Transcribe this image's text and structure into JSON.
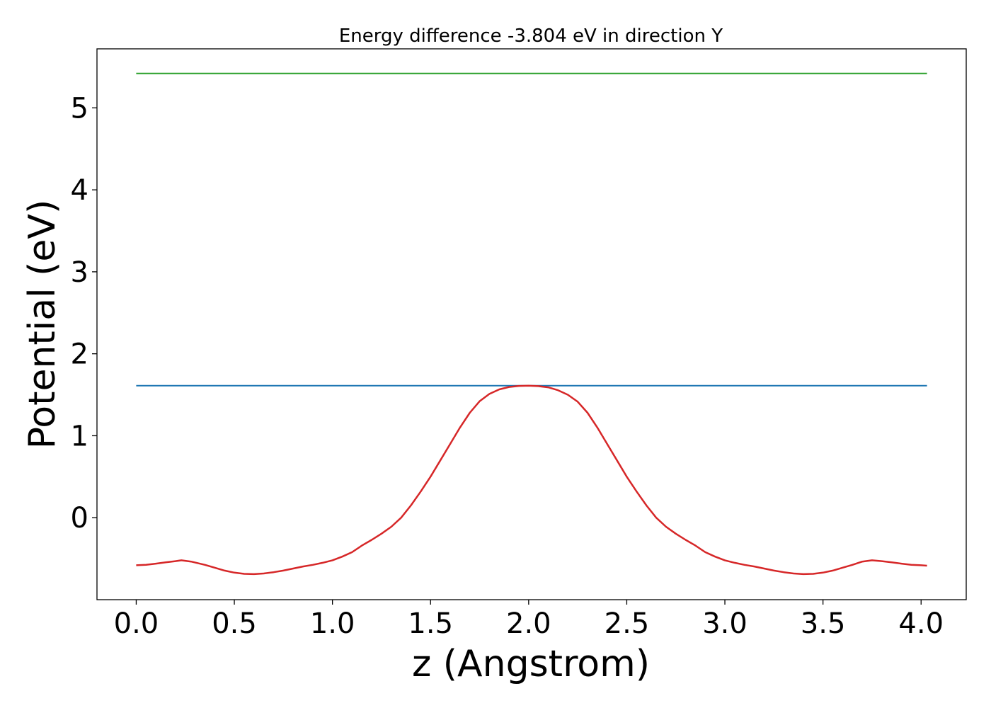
{
  "chart_data": {
    "type": "line",
    "title": "Energy difference -3.804 eV in direction Y",
    "xlabel": "z (Angstrom)",
    "ylabel": "Potential (eV)",
    "xlim": [
      -0.2,
      4.23
    ],
    "ylim": [
      -1.0,
      5.72
    ],
    "xticks": [
      {
        "value": 0.0,
        "label": "0.0"
      },
      {
        "value": 0.5,
        "label": "0.5"
      },
      {
        "value": 1.0,
        "label": "1.0"
      },
      {
        "value": 1.5,
        "label": "1.5"
      },
      {
        "value": 2.0,
        "label": "2.0"
      },
      {
        "value": 2.5,
        "label": "2.5"
      },
      {
        "value": 3.0,
        "label": "3.0"
      },
      {
        "value": 3.5,
        "label": "3.5"
      },
      {
        "value": 4.0,
        "label": "4.0"
      }
    ],
    "yticks": [
      {
        "value": 0,
        "label": "0"
      },
      {
        "value": 1,
        "label": "1"
      },
      {
        "value": 2,
        "label": "2"
      },
      {
        "value": 3,
        "label": "3"
      },
      {
        "value": 4,
        "label": "4"
      },
      {
        "value": 5,
        "label": "5"
      }
    ],
    "grid": false,
    "legend": "none",
    "series": [
      {
        "color": "#2ca02c",
        "x": [
          0.0,
          4.03
        ],
        "values": [
          5.42,
          5.42
        ]
      },
      {
        "color": "#1f77b4",
        "x": [
          0.0,
          4.03
        ],
        "values": [
          1.61,
          1.61
        ]
      },
      {
        "color": "#d62728",
        "x": [
          0.0,
          0.05,
          0.1,
          0.15,
          0.2,
          0.23,
          0.28,
          0.35,
          0.4,
          0.45,
          0.5,
          0.55,
          0.6,
          0.65,
          0.7,
          0.75,
          0.8,
          0.85,
          0.9,
          0.95,
          1.0,
          1.05,
          1.1,
          1.15,
          1.2,
          1.25,
          1.3,
          1.35,
          1.4,
          1.45,
          1.5,
          1.55,
          1.6,
          1.65,
          1.7,
          1.75,
          1.8,
          1.85,
          1.9,
          1.95,
          2.0,
          2.05,
          2.1,
          2.15,
          2.2,
          2.25,
          2.3,
          2.35,
          2.4,
          2.45,
          2.5,
          2.55,
          2.6,
          2.65,
          2.7,
          2.75,
          2.8,
          2.85,
          2.9,
          2.95,
          3.0,
          3.05,
          3.1,
          3.15,
          3.2,
          3.25,
          3.3,
          3.35,
          3.4,
          3.45,
          3.5,
          3.55,
          3.6,
          3.65,
          3.7,
          3.75,
          3.8,
          3.85,
          3.9,
          3.95,
          4.0,
          4.03
        ],
        "values": [
          -0.58,
          -0.575,
          -0.56,
          -0.545,
          -0.53,
          -0.52,
          -0.535,
          -0.575,
          -0.61,
          -0.645,
          -0.67,
          -0.685,
          -0.688,
          -0.68,
          -0.665,
          -0.645,
          -0.62,
          -0.595,
          -0.575,
          -0.55,
          -0.52,
          -0.475,
          -0.42,
          -0.34,
          -0.27,
          -0.195,
          -0.11,
          0.0,
          0.15,
          0.32,
          0.5,
          0.7,
          0.9,
          1.1,
          1.28,
          1.42,
          1.51,
          1.565,
          1.595,
          1.608,
          1.61,
          1.605,
          1.59,
          1.555,
          1.5,
          1.415,
          1.28,
          1.1,
          0.9,
          0.7,
          0.5,
          0.32,
          0.15,
          0.0,
          -0.11,
          -0.195,
          -0.27,
          -0.34,
          -0.42,
          -0.475,
          -0.52,
          -0.55,
          -0.575,
          -0.595,
          -0.62,
          -0.645,
          -0.665,
          -0.68,
          -0.688,
          -0.685,
          -0.67,
          -0.645,
          -0.61,
          -0.575,
          -0.535,
          -0.52,
          -0.53,
          -0.545,
          -0.56,
          -0.575,
          -0.58,
          -0.585
        ]
      }
    ]
  }
}
